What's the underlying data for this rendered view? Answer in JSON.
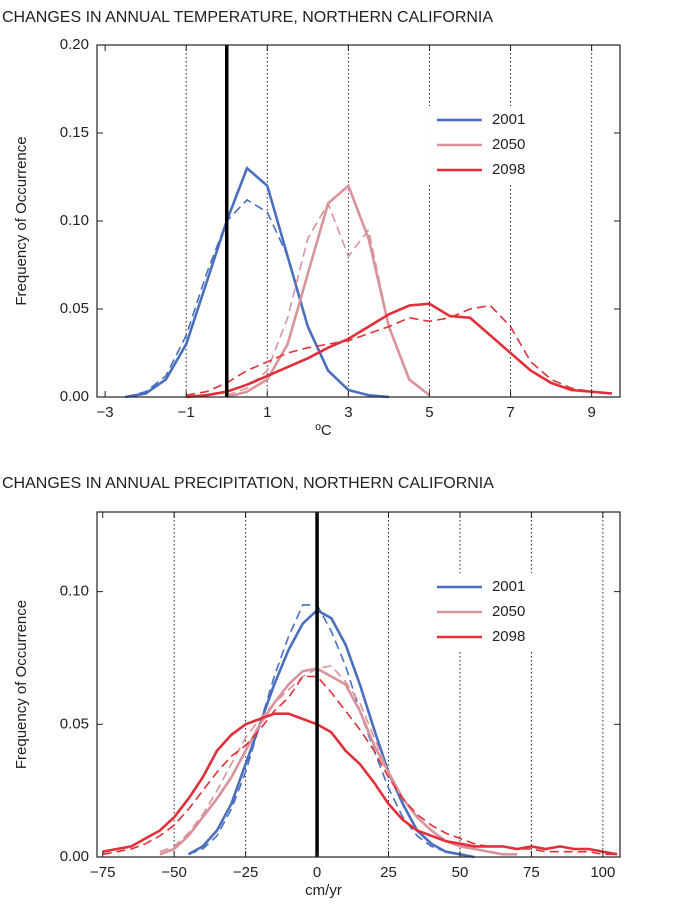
{
  "chart_data": [
    {
      "type": "line",
      "title": "CHANGES IN ANNUAL TEMPERATURE, NORTHERN CALIFORNIA",
      "x_label": "ºC",
      "y_label": "Frequency of Occurrence",
      "x": [
        -2.5,
        -2,
        -1.5,
        -1,
        -0.5,
        0,
        0.5,
        1,
        1.5,
        2,
        2.5,
        3,
        3.5,
        4,
        4.5,
        5,
        5.5,
        6,
        6.5,
        7,
        7.5,
        8,
        8.5,
        9,
        9.5
      ],
      "series": [
        {
          "name": "2001",
          "color": "#4a6fbf",
          "values": [
            0,
            0.002,
            0.01,
            0.03,
            0.065,
            0.1,
            0.13,
            0.12,
            0.08,
            0.04,
            0.015,
            0.004,
            0.001,
            0,
            null,
            null,
            null,
            null,
            null,
            null,
            null,
            null,
            null,
            null,
            null
          ],
          "dashed_values": [
            0,
            0.003,
            0.012,
            0.035,
            0.07,
            0.1,
            0.112,
            0.105,
            0.08,
            0.04,
            0.015,
            0.004,
            0.001,
            0,
            null,
            null,
            null,
            null,
            null,
            null,
            null,
            null,
            null,
            null,
            null
          ]
        },
        {
          "name": "2050",
          "color": "#d9939b",
          "values": [
            null,
            null,
            null,
            null,
            null,
            0,
            0.003,
            0.01,
            0.03,
            0.07,
            0.11,
            0.12,
            0.09,
            0.04,
            0.01,
            0.001,
            null,
            null,
            null,
            null,
            null,
            null,
            null,
            null,
            null
          ],
          "dashed_values": [
            null,
            null,
            null,
            null,
            null,
            0.001,
            0.005,
            0.015,
            0.045,
            0.09,
            0.11,
            0.08,
            0.095,
            0.04,
            0.01,
            0.001,
            null,
            null,
            null,
            null,
            null,
            null,
            null,
            null,
            null
          ]
        },
        {
          "name": "2098",
          "color": "#e0303a",
          "values": [
            null,
            null,
            null,
            0,
            0.001,
            0.003,
            0.007,
            0.012,
            0.017,
            0.022,
            0.028,
            0.033,
            0.04,
            0.047,
            0.052,
            0.053,
            0.046,
            0.045,
            0.035,
            0.025,
            0.015,
            0.008,
            0.004,
            0.003,
            0.002
          ],
          "dashed_values": [
            null,
            null,
            null,
            0.001,
            0.003,
            0.008,
            0.015,
            0.02,
            0.025,
            0.028,
            0.03,
            0.032,
            0.036,
            0.04,
            0.045,
            0.043,
            0.045,
            0.05,
            0.052,
            0.04,
            0.02,
            0.01,
            0.005,
            0.003,
            0.002
          ]
        }
      ],
      "xlim": [
        -3.2,
        9.7
      ],
      "ylim": [
        0,
        0.2
      ],
      "xticks": [
        {
          "value": -3,
          "label": "−3"
        },
        {
          "value": -1,
          "label": "−1"
        },
        1,
        3,
        5,
        7,
        9
      ],
      "yticks": [
        {
          "value": 0,
          "label": "0.00"
        },
        {
          "value": 0.05,
          "label": "0.05"
        },
        {
          "value": 0.1,
          "label": "0.10"
        },
        {
          "value": 0.15,
          "label": "0.15"
        },
        {
          "value": 0.2,
          "label": "0.20"
        }
      ],
      "vlines": [
        -1,
        1,
        3,
        5,
        7,
        9
      ],
      "refline": 0,
      "legend": "upper right"
    },
    {
      "type": "line",
      "title": "CHANGES IN ANNUAL PRECIPITATION, NORTHERN CALIFORNIA",
      "x_label": "cm/yr",
      "y_label": "Frequency of Occurrence",
      "x": [
        -75,
        -70,
        -65,
        -60,
        -55,
        -50,
        -45,
        -40,
        -35,
        -30,
        -25,
        -20,
        -15,
        -10,
        -5,
        0,
        5,
        10,
        15,
        20,
        25,
        30,
        35,
        40,
        45,
        50,
        55,
        60,
        65,
        70,
        75,
        80,
        85,
        90,
        95,
        100,
        105
      ],
      "series": [
        {
          "name": "2001",
          "color": "#4a6fbf",
          "values": [
            null,
            null,
            null,
            null,
            null,
            null,
            0.001,
            0.004,
            0.01,
            0.02,
            0.035,
            0.05,
            0.065,
            0.078,
            0.088,
            0.093,
            0.09,
            0.08,
            0.065,
            0.048,
            0.032,
            0.02,
            0.01,
            0.005,
            0.002,
            0.001,
            0,
            null,
            null,
            null,
            null,
            null,
            null,
            null,
            null,
            null,
            null
          ],
          "dashed_values": [
            null,
            null,
            null,
            null,
            null,
            null,
            0.001,
            0.003,
            0.008,
            0.018,
            0.032,
            0.05,
            0.068,
            0.083,
            0.095,
            0.095,
            0.085,
            0.072,
            0.055,
            0.04,
            0.026,
            0.015,
            0.008,
            0.004,
            0.002,
            0.001,
            0,
            null,
            null,
            null,
            null,
            null,
            null,
            null,
            null,
            null,
            null
          ]
        },
        {
          "name": "2050",
          "color": "#d9939b",
          "values": [
            null,
            null,
            null,
            null,
            0.001,
            0.003,
            0.008,
            0.015,
            0.022,
            0.03,
            0.04,
            0.05,
            0.058,
            0.065,
            0.07,
            0.071,
            0.068,
            0.065,
            0.055,
            0.042,
            0.032,
            0.022,
            0.015,
            0.01,
            0.006,
            0.004,
            0.003,
            0.002,
            0.001,
            0.001,
            null,
            null,
            null,
            null,
            null,
            null,
            null
          ],
          "dashed_values": [
            null,
            null,
            null,
            null,
            0.002,
            0.004,
            0.009,
            0.016,
            0.025,
            0.035,
            0.045,
            0.052,
            0.058,
            0.063,
            0.068,
            0.071,
            0.072,
            0.066,
            0.058,
            0.045,
            0.032,
            0.022,
            0.015,
            0.01,
            0.006,
            0.004,
            0.003,
            0.002,
            0.001,
            0.001,
            null,
            null,
            null,
            null,
            null,
            null,
            null
          ]
        },
        {
          "name": "2098",
          "color": "#e0303a",
          "values": [
            0.002,
            0.003,
            0.004,
            0.007,
            0.01,
            0.015,
            0.022,
            0.03,
            0.04,
            0.046,
            0.05,
            0.052,
            0.054,
            0.054,
            0.052,
            0.05,
            0.047,
            0.04,
            0.035,
            0.028,
            0.02,
            0.014,
            0.01,
            0.008,
            0.006,
            0.005,
            0.004,
            0.004,
            0.004,
            0.003,
            0.004,
            0.003,
            0.004,
            0.003,
            0.003,
            0.002,
            0.001
          ],
          "dashed_values": [
            0.001,
            0.002,
            0.003,
            0.005,
            0.008,
            0.012,
            0.018,
            0.025,
            0.032,
            0.038,
            0.042,
            0.048,
            0.055,
            0.06,
            0.068,
            0.068,
            0.062,
            0.055,
            0.048,
            0.04,
            0.03,
            0.022,
            0.016,
            0.012,
            0.009,
            0.007,
            0.005,
            0.004,
            0.004,
            0.003,
            0.003,
            0.002,
            0.002,
            0.002,
            0.002,
            0.001,
            0.001
          ]
        }
      ],
      "xlim": [
        -77,
        106
      ],
      "ylim": [
        0,
        0.13
      ],
      "xticks": [
        {
          "value": -75,
          "label": "−75"
        },
        {
          "value": -50,
          "label": "−50"
        },
        {
          "value": -25,
          "label": "−25"
        },
        0,
        25,
        50,
        75,
        100
      ],
      "yticks": [
        {
          "value": 0,
          "label": "0.00"
        },
        {
          "value": 0.05,
          "label": "0.05"
        },
        {
          "value": 0.1,
          "label": "0.10"
        }
      ],
      "vlines": [
        -50,
        -25,
        25,
        50,
        75,
        100
      ],
      "refline": 0,
      "legend": "upper right"
    }
  ]
}
